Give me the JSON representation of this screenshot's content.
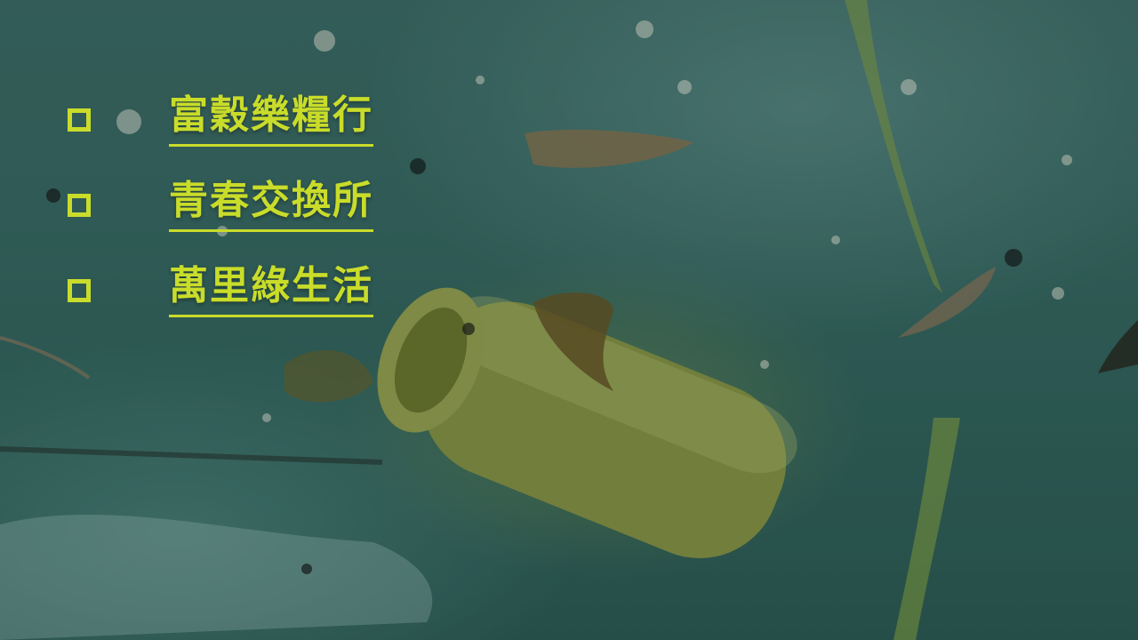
{
  "menu": {
    "items": [
      {
        "label": "富穀樂糧行",
        "checked": false
      },
      {
        "label": "青春交換所",
        "checked": false
      },
      {
        "label": "萬里綠生活",
        "checked": false
      }
    ]
  },
  "colors": {
    "accent": "#c9dc2a",
    "water": "#3a6e68"
  },
  "background": {
    "icon": "underwater-plastic-bottle-image"
  }
}
